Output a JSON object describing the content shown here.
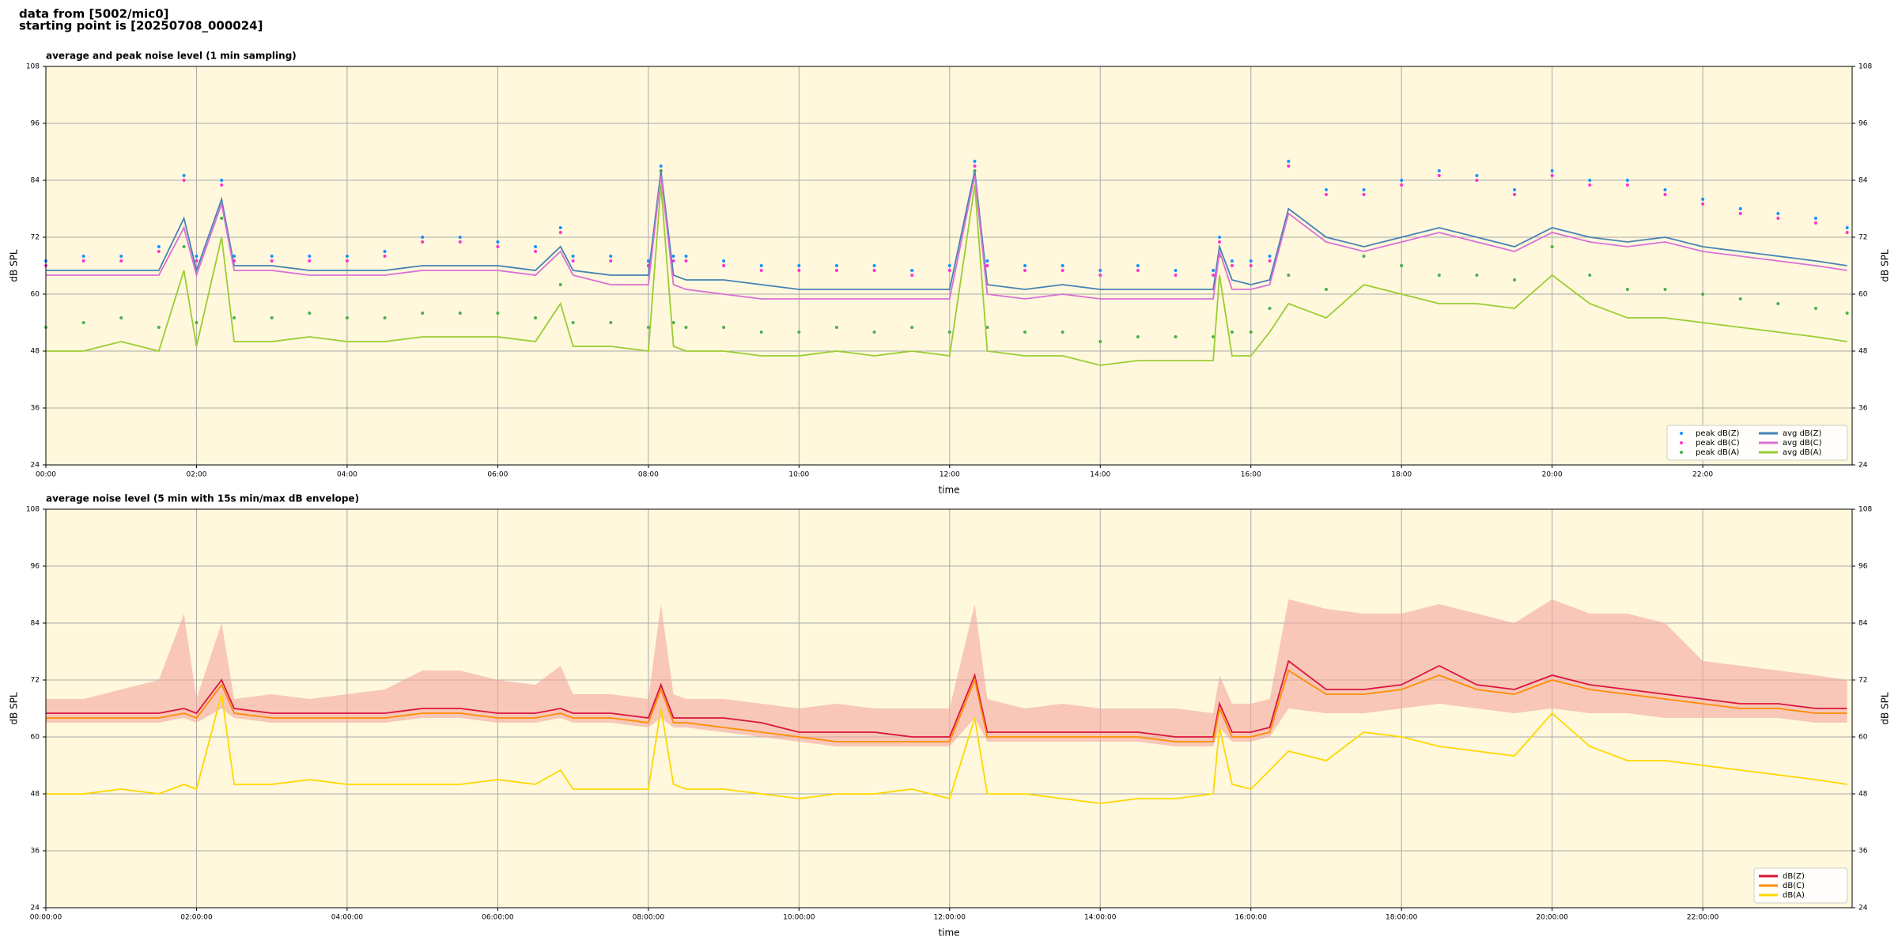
{
  "header": {
    "source": "data from [5002/mic0]",
    "start": "starting point is [20250708_000024]"
  },
  "chart_data": [
    {
      "type": "line",
      "title": "average and peak noise level (1 min sampling)",
      "xlabel": "time",
      "ylabel": "dB SPL",
      "x": [
        "00:00",
        "00:30",
        "01:00",
        "01:30",
        "01:50",
        "02:00",
        "02:20",
        "02:30",
        "03:00",
        "03:30",
        "04:00",
        "04:30",
        "05:00",
        "05:30",
        "06:00",
        "06:30",
        "06:50",
        "07:00",
        "07:30",
        "08:00",
        "08:10",
        "08:20",
        "08:30",
        "09:00",
        "09:30",
        "10:00",
        "10:30",
        "11:00",
        "11:30",
        "12:00",
        "12:20",
        "12:30",
        "13:00",
        "13:30",
        "14:00",
        "14:30",
        "15:00",
        "15:30",
        "15:35",
        "15:45",
        "16:00",
        "16:15",
        "16:30",
        "17:00",
        "17:30",
        "18:00",
        "18:30",
        "19:00",
        "19:30",
        "20:00",
        "20:30",
        "21:00",
        "21:30",
        "22:00",
        "22:30",
        "23:00",
        "23:30",
        "23:55"
      ],
      "xlim": [
        "00:00",
        "23:59"
      ],
      "xticks": [
        "00:00",
        "02:00",
        "04:00",
        "06:00",
        "08:00",
        "10:00",
        "12:00",
        "14:00",
        "16:00",
        "18:00",
        "20:00",
        "22:00"
      ],
      "ylim": [
        24,
        108
      ],
      "yticks": [
        24,
        36,
        48,
        60,
        72,
        84,
        96,
        108
      ],
      "grid": true,
      "legend": "lower right",
      "background": "#fff8dc",
      "series": [
        {
          "name": "peak dB(Z)",
          "color": "#1e90ff",
          "style": "points",
          "values": [
            67,
            68,
            68,
            70,
            85,
            68,
            84,
            68,
            68,
            68,
            68,
            69,
            72,
            72,
            71,
            70,
            74,
            68,
            68,
            67,
            87,
            68,
            68,
            67,
            66,
            66,
            66,
            66,
            65,
            66,
            88,
            67,
            66,
            66,
            65,
            66,
            65,
            65,
            72,
            67,
            67,
            68,
            88,
            82,
            82,
            84,
            86,
            85,
            82,
            86,
            84,
            84,
            82,
            80,
            78,
            77,
            76,
            74
          ]
        },
        {
          "name": "peak dB(C)",
          "color": "#ff33cc",
          "style": "points",
          "values": [
            66,
            67,
            67,
            69,
            84,
            67,
            83,
            67,
            67,
            67,
            67,
            68,
            71,
            71,
            70,
            69,
            73,
            67,
            67,
            66,
            86,
            67,
            67,
            66,
            65,
            65,
            65,
            65,
            64,
            65,
            87,
            66,
            65,
            65,
            64,
            65,
            64,
            64,
            71,
            66,
            66,
            67,
            87,
            81,
            81,
            83,
            85,
            84,
            81,
            85,
            83,
            83,
            81,
            79,
            77,
            76,
            75,
            73
          ]
        },
        {
          "name": "peak dB(A)",
          "color": "#4caf50",
          "style": "points",
          "values": [
            53,
            54,
            55,
            53,
            70,
            54,
            76,
            55,
            55,
            56,
            55,
            55,
            56,
            56,
            56,
            55,
            62,
            54,
            54,
            53,
            86,
            54,
            53,
            53,
            52,
            52,
            53,
            52,
            53,
            52,
            86,
            53,
            52,
            52,
            50,
            51,
            51,
            51,
            68,
            52,
            52,
            57,
            64,
            61,
            68,
            66,
            64,
            64,
            63,
            70,
            64,
            61,
            61,
            60,
            59,
            58,
            57,
            56
          ]
        },
        {
          "name": "avg dB(Z)",
          "color": "#4682b4",
          "style": "line",
          "values": [
            65,
            65,
            65,
            65,
            76,
            65,
            80,
            66,
            66,
            65,
            65,
            65,
            66,
            66,
            66,
            65,
            70,
            65,
            64,
            64,
            86,
            64,
            63,
            63,
            62,
            61,
            61,
            61,
            61,
            61,
            86,
            62,
            61,
            62,
            61,
            61,
            61,
            61,
            70,
            63,
            62,
            63,
            78,
            72,
            70,
            72,
            74,
            72,
            70,
            74,
            72,
            71,
            72,
            70,
            69,
            68,
            67,
            66
          ]
        },
        {
          "name": "avg dB(C)",
          "color": "#da70d6",
          "style": "line",
          "values": [
            64,
            64,
            64,
            64,
            74,
            64,
            79,
            65,
            65,
            64,
            64,
            64,
            65,
            65,
            65,
            64,
            69,
            64,
            62,
            62,
            85,
            62,
            61,
            60,
            59,
            59,
            59,
            59,
            59,
            59,
            85,
            60,
            59,
            60,
            59,
            59,
            59,
            59,
            69,
            61,
            61,
            62,
            77,
            71,
            69,
            71,
            73,
            71,
            69,
            73,
            71,
            70,
            71,
            69,
            68,
            67,
            66,
            65
          ]
        },
        {
          "name": "avg dB(A)",
          "color": "#9acd32",
          "style": "line",
          "values": [
            48,
            48,
            50,
            48,
            65,
            49,
            72,
            50,
            50,
            51,
            50,
            50,
            51,
            51,
            51,
            50,
            58,
            49,
            49,
            48,
            83,
            49,
            48,
            48,
            47,
            47,
            48,
            47,
            48,
            47,
            83,
            48,
            47,
            47,
            45,
            46,
            46,
            46,
            64,
            47,
            47,
            52,
            58,
            55,
            62,
            60,
            58,
            58,
            57,
            64,
            58,
            55,
            55,
            54,
            53,
            52,
            51,
            50
          ]
        }
      ]
    },
    {
      "type": "line",
      "title": "average noise level (5 min with 15s min/max dB envelope)",
      "xlabel": "time",
      "ylabel": "dB SPL",
      "x": [
        "00:00:00",
        "00:30:00",
        "01:00:00",
        "01:30:00",
        "01:50:00",
        "02:00:00",
        "02:20:00",
        "02:30:00",
        "03:00:00",
        "03:30:00",
        "04:00:00",
        "04:30:00",
        "05:00:00",
        "05:30:00",
        "06:00:00",
        "06:30:00",
        "06:50:00",
        "07:00:00",
        "07:30:00",
        "08:00:00",
        "08:10:00",
        "08:20:00",
        "08:30:00",
        "09:00:00",
        "09:30:00",
        "10:00:00",
        "10:30:00",
        "11:00:00",
        "11:30:00",
        "12:00:00",
        "12:20:00",
        "12:30:00",
        "13:00:00",
        "13:30:00",
        "14:00:00",
        "14:30:00",
        "15:00:00",
        "15:30:00",
        "15:35:00",
        "15:45:00",
        "16:00:00",
        "16:15:00",
        "16:30:00",
        "17:00:00",
        "17:30:00",
        "18:00:00",
        "18:30:00",
        "19:00:00",
        "19:30:00",
        "20:00:00",
        "20:30:00",
        "21:00:00",
        "21:30:00",
        "22:00:00",
        "22:30:00",
        "23:00:00",
        "23:30:00",
        "23:55:00"
      ],
      "xlim": [
        "00:00:00",
        "23:59:00"
      ],
      "xticks": [
        "00:00:00",
        "02:00:00",
        "04:00:00",
        "06:00:00",
        "08:00:00",
        "10:00:00",
        "12:00:00",
        "14:00:00",
        "16:00:00",
        "18:00:00",
        "20:00:00",
        "22:00:00"
      ],
      "ylim": [
        24,
        108
      ],
      "yticks": [
        24,
        36,
        48,
        60,
        72,
        84,
        96,
        108
      ],
      "grid": true,
      "legend": "lower right",
      "background": "#fff8dc",
      "envelope": {
        "color": "#f4a6a0",
        "min": [
          63,
          63,
          63,
          63,
          64,
          63,
          66,
          64,
          63,
          63,
          63,
          63,
          64,
          64,
          63,
          63,
          64,
          63,
          63,
          62,
          64,
          62,
          62,
          61,
          60,
          59,
          58,
          58,
          58,
          58,
          64,
          59,
          59,
          59,
          59,
          59,
          58,
          58,
          62,
          59,
          59,
          60,
          66,
          65,
          65,
          66,
          67,
          66,
          65,
          66,
          65,
          65,
          64,
          64,
          64,
          64,
          63,
          63
        ],
        "max": [
          68,
          68,
          70,
          72,
          86,
          68,
          84,
          68,
          69,
          68,
          69,
          70,
          74,
          74,
          72,
          71,
          75,
          69,
          69,
          68,
          88,
          69,
          68,
          68,
          67,
          66,
          67,
          66,
          66,
          66,
          88,
          68,
          66,
          67,
          66,
          66,
          66,
          65,
          73,
          67,
          67,
          68,
          89,
          87,
          86,
          86,
          88,
          86,
          84,
          89,
          86,
          86,
          84,
          76,
          75,
          74,
          73,
          72
        ]
      },
      "series": [
        {
          "name": "dB(Z)",
          "color": "#dc143c",
          "style": "line",
          "values": [
            65,
            65,
            65,
            65,
            66,
            65,
            72,
            66,
            65,
            65,
            65,
            65,
            66,
            66,
            65,
            65,
            66,
            65,
            65,
            64,
            71,
            64,
            64,
            64,
            63,
            61,
            61,
            61,
            60,
            60,
            73,
            61,
            61,
            61,
            61,
            61,
            60,
            60,
            67,
            61,
            61,
            62,
            76,
            70,
            70,
            71,
            75,
            71,
            70,
            73,
            71,
            70,
            69,
            68,
            67,
            67,
            66,
            66
          ]
        },
        {
          "name": "dB(C)",
          "color": "#ff8c00",
          "style": "line",
          "values": [
            64,
            64,
            64,
            64,
            65,
            64,
            71,
            65,
            64,
            64,
            64,
            64,
            65,
            65,
            64,
            64,
            65,
            64,
            64,
            63,
            70,
            63,
            63,
            62,
            61,
            60,
            59,
            59,
            59,
            59,
            72,
            60,
            60,
            60,
            60,
            60,
            59,
            59,
            66,
            60,
            60,
            61,
            74,
            69,
            69,
            70,
            73,
            70,
            69,
            72,
            70,
            69,
            68,
            67,
            66,
            66,
            65,
            65
          ]
        },
        {
          "name": "dB(A)",
          "color": "#ffd700",
          "style": "line",
          "values": [
            48,
            48,
            49,
            48,
            50,
            49,
            69,
            50,
            50,
            51,
            50,
            50,
            50,
            50,
            51,
            50,
            53,
            49,
            49,
            49,
            66,
            50,
            49,
            49,
            48,
            47,
            48,
            48,
            49,
            47,
            64,
            48,
            48,
            47,
            46,
            47,
            47,
            48,
            62,
            50,
            49,
            53,
            57,
            55,
            61,
            60,
            58,
            57,
            56,
            65,
            58,
            55,
            55,
            54,
            53,
            52,
            51,
            50
          ]
        }
      ]
    }
  ]
}
